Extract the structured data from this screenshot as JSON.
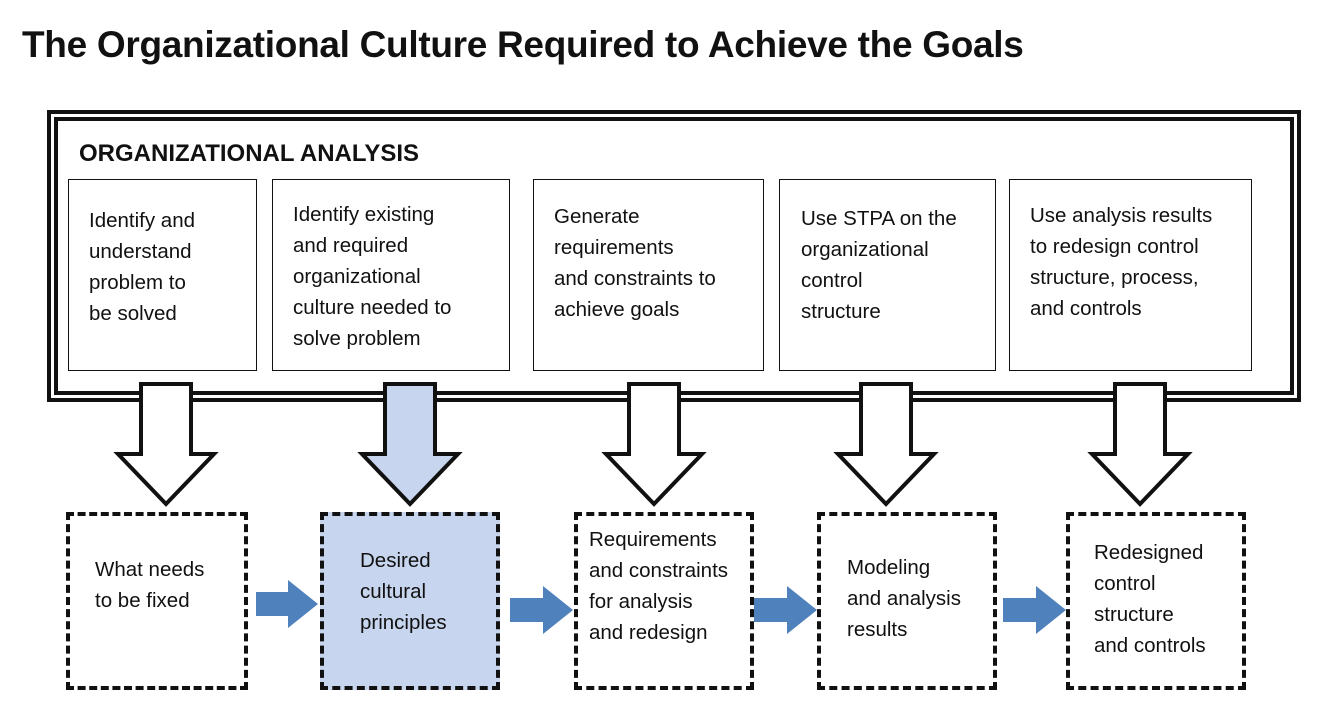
{
  "title": "The Organizational Culture Required to Achieve the Goals",
  "section_label": "ORGANIZATIONAL ANALYSIS",
  "steps": [
    {
      "lines": [
        "Identify and",
        "understand",
        "problem to",
        "be solved"
      ],
      "highlighted": false
    },
    {
      "lines": [
        "Identify existing",
        "and required",
        "organizational",
        "culture needed to",
        "solve problem"
      ],
      "highlighted": true
    },
    {
      "lines": [
        "Generate",
        "requirements",
        "and constraints to",
        "achieve goals"
      ],
      "highlighted": false
    },
    {
      "lines": [
        "Use STPA on the",
        "organizational",
        "control",
        "structure"
      ],
      "highlighted": false
    },
    {
      "lines": [
        "Use analysis results",
        "to redesign control",
        "structure, process,",
        "and controls"
      ],
      "highlighted": false
    }
  ],
  "outputs": [
    {
      "lines": [
        "What needs",
        "to be fixed"
      ],
      "highlighted": false
    },
    {
      "lines": [
        "Desired",
        "cultural",
        "principles"
      ],
      "highlighted": true
    },
    {
      "lines": [
        "Requirements",
        "and constraints",
        "for analysis",
        "and redesign"
      ],
      "highlighted": false
    },
    {
      "lines": [
        "Modeling",
        "and analysis",
        "results"
      ],
      "highlighted": false
    },
    {
      "lines": [
        "Redesigned",
        "control",
        "structure",
        "and controls"
      ],
      "highlighted": false
    }
  ],
  "colors": {
    "highlight": "#c7d6ee",
    "flow_arrow": "#4f81bd",
    "outline": "#111111"
  }
}
